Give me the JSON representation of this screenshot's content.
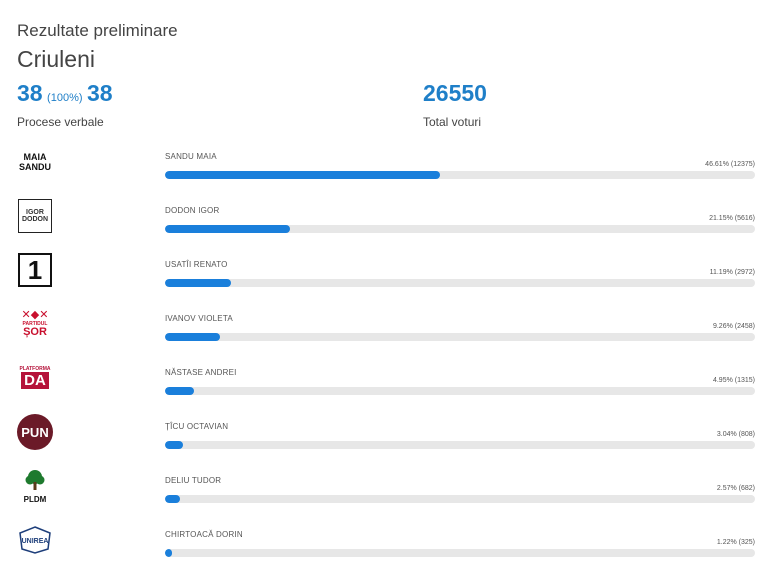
{
  "header": {
    "title": "Rezultate preliminare",
    "region": "Criuleni"
  },
  "stats": {
    "processed": "38",
    "processed_pct": "(100%)",
    "total_protocols": "38",
    "protocols_label": "Procese verbale",
    "total_votes": "26550",
    "votes_label": "Total voturi"
  },
  "logos": {
    "sandu": "MAIA SANDU",
    "dodon": "IGOR DODON",
    "usatii": "1",
    "sor_symbol": "✕◆✕",
    "sor_sub": "PARTIDUL",
    "sor_main": "ȘOR",
    "da_sub": "PLATFORMA",
    "da_main": "DA",
    "pun": "PUN",
    "pldm": "PLDM",
    "unirea": "UNIREA"
  },
  "colors": {
    "accent": "#1f7fc8",
    "bar_fill": "#1a7fdb",
    "bar_track": "#e7e7e7"
  },
  "chart_data": {
    "type": "bar",
    "orientation": "horizontal",
    "title": "",
    "categories": [
      "SANDU MAIA",
      "DODON IGOR",
      "USATÎI RENATO",
      "IVANOV VIOLETA",
      "NĂSTASE ANDREI",
      "ȚÎCU OCTAVIAN",
      "DELIU TUDOR",
      "CHIRTOACĂ DORIN"
    ],
    "series": [
      {
        "values": [
          46.61,
          21.15,
          11.19,
          9.26,
          4.95,
          3.04,
          2.57,
          1.22
        ]
      }
    ],
    "labels": [
      "46.61% (12375)",
      "21.15% (5616)",
      "11.19% (2972)",
      "9.26% (2458)",
      "4.95% (1315)",
      "3.04% (808)",
      "2.57% (682)",
      "1.22% (325)"
    ],
    "ylim": [
      0,
      100
    ]
  }
}
